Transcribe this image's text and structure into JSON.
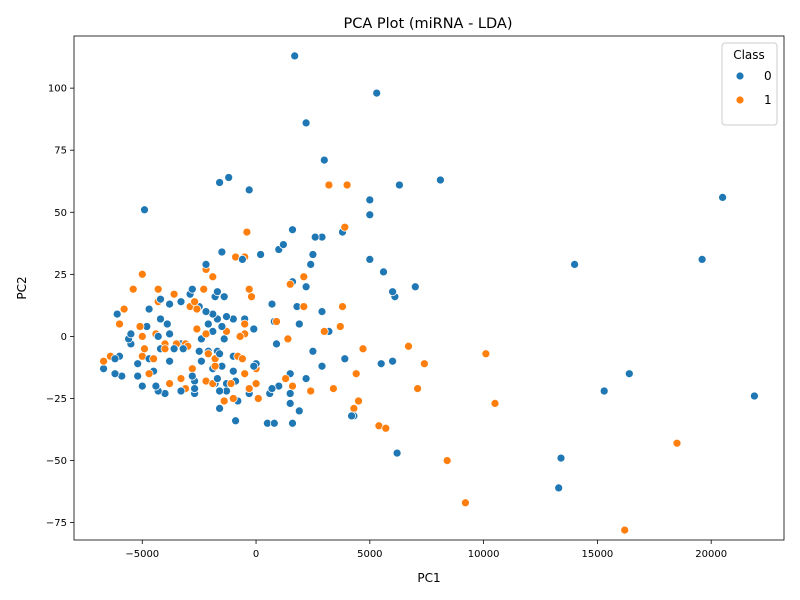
{
  "chart_data": {
    "type": "scatter",
    "title": "PCA Plot (miRNA - LDA)",
    "xlabel": "PC1",
    "ylabel": "PC2",
    "xlim": [
      -8000,
      23200
    ],
    "ylim": [
      -82,
      121
    ],
    "xticks": [
      -5000,
      0,
      5000,
      10000,
      15000,
      20000
    ],
    "yticks": [
      -75,
      -50,
      -25,
      0,
      25,
      50,
      75,
      100
    ],
    "grid": false,
    "legend": {
      "title": "Class",
      "placement": "top-right"
    },
    "series": [
      {
        "name": "0",
        "color": "#1f77b4",
        "points": [
          [
            1700,
            113
          ],
          [
            5300,
            98
          ],
          [
            2200,
            86
          ],
          [
            3000,
            71
          ],
          [
            8100,
            63
          ],
          [
            6300,
            61
          ],
          [
            -1200,
            64
          ],
          [
            -1600,
            62
          ],
          [
            -300,
            59
          ],
          [
            5000,
            55
          ],
          [
            20500,
            56
          ],
          [
            -4900,
            51
          ],
          [
            5000,
            49
          ],
          [
            1600,
            43
          ],
          [
            3800,
            42
          ],
          [
            2900,
            40
          ],
          [
            2600,
            40
          ],
          [
            1200,
            37
          ],
          [
            1000,
            35
          ],
          [
            -1500,
            34
          ],
          [
            200,
            33
          ],
          [
            -600,
            31
          ],
          [
            5000,
            31
          ],
          [
            19600,
            31
          ],
          [
            14000,
            29
          ],
          [
            -2200,
            29
          ],
          [
            2400,
            29
          ],
          [
            5600,
            26
          ],
          [
            2500,
            33
          ],
          [
            1600,
            22
          ],
          [
            2200,
            20
          ],
          [
            7000,
            20
          ],
          [
            6000,
            18
          ],
          [
            6100,
            16
          ],
          [
            1800,
            12
          ],
          [
            700,
            13
          ],
          [
            2900,
            10
          ],
          [
            -1700,
            18
          ],
          [
            -1800,
            16
          ],
          [
            -1400,
            16
          ],
          [
            -2900,
            17
          ],
          [
            -2800,
            19
          ],
          [
            -4200,
            15
          ],
          [
            -3300,
            14
          ],
          [
            -3800,
            13
          ],
          [
            -2500,
            12
          ],
          [
            -4700,
            11
          ],
          [
            -2200,
            10
          ],
          [
            -1900,
            9
          ],
          [
            -1300,
            8
          ],
          [
            -4200,
            7
          ],
          [
            -1700,
            7
          ],
          [
            -1000,
            7
          ],
          [
            -500,
            7
          ],
          [
            800,
            6
          ],
          [
            1900,
            5
          ],
          [
            -6100,
            9
          ],
          [
            -2100,
            5
          ],
          [
            -3900,
            5
          ],
          [
            -1500,
            4
          ],
          [
            -4800,
            4
          ],
          [
            -100,
            3
          ],
          [
            3200,
            2
          ],
          [
            -1900,
            2
          ],
          [
            -5500,
            1
          ],
          [
            -3800,
            1
          ],
          [
            -4300,
            0
          ],
          [
            -2400,
            -1
          ],
          [
            -5600,
            -1
          ],
          [
            -1400,
            -1
          ],
          [
            -5500,
            -3
          ],
          [
            -3300,
            -3
          ],
          [
            -4000,
            -3
          ],
          [
            -4200,
            -5
          ],
          [
            -3600,
            -5
          ],
          [
            900,
            -3
          ],
          [
            -3200,
            -5
          ],
          [
            -1600,
            -7
          ],
          [
            -2100,
            -6
          ],
          [
            -2500,
            -6
          ],
          [
            -1700,
            -6
          ],
          [
            -6000,
            -8
          ],
          [
            -4700,
            -9
          ],
          [
            -3800,
            -10
          ],
          [
            -5200,
            -11
          ],
          [
            -1000,
            -8
          ],
          [
            -2400,
            -10
          ],
          [
            0,
            -11
          ],
          [
            -100,
            -12
          ],
          [
            2900,
            -12
          ],
          [
            5500,
            -11
          ],
          [
            6000,
            -10
          ],
          [
            3900,
            -9
          ],
          [
            2500,
            -6
          ],
          [
            -6200,
            -9
          ],
          [
            -1500,
            -12
          ],
          [
            -1900,
            -13
          ],
          [
            -4500,
            -14
          ],
          [
            -6700,
            -13
          ],
          [
            -6200,
            -15
          ],
          [
            -5900,
            -16
          ],
          [
            -5200,
            -16
          ],
          [
            -2800,
            -16
          ],
          [
            -1000,
            -14
          ],
          [
            1000,
            -20
          ],
          [
            1500,
            -15
          ],
          [
            2200,
            -17
          ],
          [
            -2700,
            -18
          ],
          [
            -1800,
            -19
          ],
          [
            -1700,
            -17
          ],
          [
            -1300,
            -19
          ],
          [
            -900,
            -18
          ],
          [
            -4400,
            -20
          ],
          [
            -5000,
            -20
          ],
          [
            -4300,
            -22
          ],
          [
            -3300,
            -22
          ],
          [
            -2700,
            -21
          ],
          [
            -1300,
            -22
          ],
          [
            -1600,
            -22
          ],
          [
            -2700,
            -23
          ],
          [
            -4000,
            -23
          ],
          [
            -300,
            -23
          ],
          [
            700,
            -21
          ],
          [
            600,
            -23
          ],
          [
            1500,
            -23
          ],
          [
            -800,
            -26
          ],
          [
            1500,
            -27
          ],
          [
            -1600,
            -29
          ],
          [
            1900,
            -30
          ],
          [
            -900,
            -34
          ],
          [
            500,
            -35
          ],
          [
            800,
            -35
          ],
          [
            1600,
            -35
          ],
          [
            4300,
            -32
          ],
          [
            4200,
            -32
          ],
          [
            6200,
            -47
          ],
          [
            13400,
            -49
          ],
          [
            15300,
            -22
          ],
          [
            16400,
            -15
          ],
          [
            21900,
            -24
          ],
          [
            13300,
            -61
          ],
          [
            0,
            -11
          ]
        ]
      },
      {
        "name": "1",
        "color": "#ff7f0e",
        "points": [
          [
            3200,
            61
          ],
          [
            4000,
            61
          ],
          [
            3900,
            44
          ],
          [
            -400,
            42
          ],
          [
            -900,
            32
          ],
          [
            -2200,
            27
          ],
          [
            -1900,
            24
          ],
          [
            -5000,
            25
          ],
          [
            2100,
            24
          ],
          [
            -5400,
            19
          ],
          [
            -4300,
            19
          ],
          [
            -2300,
            19
          ],
          [
            -300,
            19
          ],
          [
            -200,
            16
          ],
          [
            -3600,
            17
          ],
          [
            -4300,
            14
          ],
          [
            -2700,
            14
          ],
          [
            -2900,
            12
          ],
          [
            -5800,
            11
          ],
          [
            -2600,
            11
          ],
          [
            2100,
            12
          ],
          [
            3800,
            12
          ],
          [
            -5100,
            4
          ],
          [
            -2600,
            3
          ],
          [
            -1300,
            2
          ],
          [
            -2200,
            1
          ],
          [
            -500,
            1
          ],
          [
            -4400,
            1
          ],
          [
            -5000,
            0
          ],
          [
            3000,
            2
          ],
          [
            3700,
            4
          ],
          [
            -6000,
            5
          ],
          [
            -500,
            5
          ],
          [
            900,
            6
          ],
          [
            1400,
            -1
          ],
          [
            -3100,
            -3
          ],
          [
            -3500,
            -3
          ],
          [
            -4000,
            -3
          ],
          [
            -700,
            0
          ],
          [
            -4900,
            -5
          ],
          [
            -4000,
            -5
          ],
          [
            -3000,
            -4
          ],
          [
            -2100,
            -7
          ],
          [
            -1800,
            -9
          ],
          [
            -800,
            -8
          ],
          [
            -600,
            -9
          ],
          [
            -6400,
            -8
          ],
          [
            -6700,
            -10
          ],
          [
            -5000,
            -8
          ],
          [
            -4500,
            -9
          ],
          [
            4700,
            -5
          ],
          [
            6700,
            -4
          ],
          [
            10100,
            -7
          ],
          [
            7400,
            -11
          ],
          [
            -2800,
            -13
          ],
          [
            -1800,
            -12
          ],
          [
            0,
            -13
          ],
          [
            0,
            -19
          ],
          [
            -1100,
            -19
          ],
          [
            1600,
            -20
          ],
          [
            1300,
            -17
          ],
          [
            -2200,
            -18
          ],
          [
            -3300,
            -17
          ],
          [
            -4700,
            -15
          ],
          [
            4400,
            -15
          ],
          [
            -3800,
            -19
          ],
          [
            -3100,
            -21
          ],
          [
            -1900,
            -19
          ],
          [
            -1000,
            -25
          ],
          [
            -300,
            -21
          ],
          [
            -1400,
            -26
          ],
          [
            100,
            -25
          ],
          [
            2400,
            -22
          ],
          [
            3400,
            -21
          ],
          [
            7100,
            -21
          ],
          [
            4500,
            -26
          ],
          [
            4300,
            -29
          ],
          [
            10500,
            -27
          ],
          [
            5400,
            -36
          ],
          [
            5700,
            -37
          ],
          [
            18500,
            -43
          ],
          [
            8400,
            -50
          ],
          [
            9200,
            -67
          ],
          [
            16200,
            -78
          ],
          [
            -500,
            -15
          ],
          [
            1500,
            21
          ],
          [
            -500,
            32
          ]
        ]
      }
    ]
  }
}
